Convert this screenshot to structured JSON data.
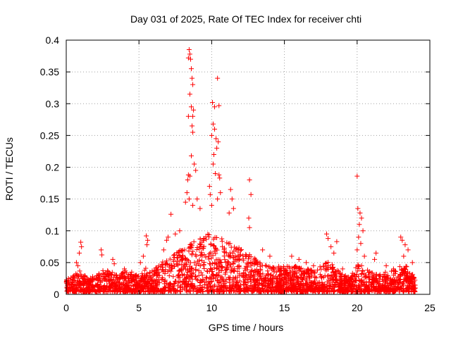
{
  "chart_data": {
    "type": "scatter",
    "title": "Day 031 of 2025, Rate Of TEC Index for receiver chti",
    "xlabel": "GPS time / hours",
    "ylabel": "ROTI / TECUs",
    "xlim": [
      0,
      25
    ],
    "ylim": [
      0,
      0.4
    ],
    "x_ticks": [
      0,
      5,
      10,
      15,
      20,
      25
    ],
    "x_tick_labels": [
      "0",
      "5",
      "10",
      "15",
      "20",
      "25"
    ],
    "y_ticks": [
      0,
      0.05,
      0.1,
      0.15,
      0.2,
      0.25,
      0.3,
      0.35,
      0.4
    ],
    "y_tick_labels": [
      "0",
      "0.05",
      "0.1",
      "0.15",
      "0.2",
      "0.25",
      "0.3",
      "0.35",
      "0.4"
    ],
    "grid": true,
    "legend": "none",
    "marker": "plus",
    "color": "#ff0000",
    "points": [
      [
        8.45,
        0.385
      ],
      [
        8.5,
        0.378
      ],
      [
        8.4,
        0.372
      ],
      [
        8.55,
        0.37
      ],
      [
        8.6,
        0.355
      ],
      [
        8.65,
        0.34
      ],
      [
        8.7,
        0.33
      ],
      [
        8.5,
        0.315
      ],
      [
        8.6,
        0.295
      ],
      [
        8.7,
        0.28
      ],
      [
        8.75,
        0.29
      ],
      [
        8.4,
        0.28
      ],
      [
        8.65,
        0.265
      ],
      [
        8.7,
        0.255
      ],
      [
        8.6,
        0.218
      ],
      [
        8.8,
        0.205
      ],
      [
        8.9,
        0.195
      ],
      [
        8.4,
        0.188
      ],
      [
        8.5,
        0.186
      ],
      [
        8.35,
        0.18
      ],
      [
        8.3,
        0.16
      ],
      [
        8.2,
        0.145
      ],
      [
        8.45,
        0.15
      ],
      [
        8.7,
        0.14
      ],
      [
        9.0,
        0.15
      ],
      [
        9.2,
        0.135
      ],
      [
        10.05,
        0.302
      ],
      [
        10.2,
        0.295
      ],
      [
        10.5,
        0.297
      ],
      [
        10.4,
        0.34
      ],
      [
        10.1,
        0.268
      ],
      [
        10.2,
        0.26
      ],
      [
        10.0,
        0.25
      ],
      [
        10.3,
        0.245
      ],
      [
        10.45,
        0.24
      ],
      [
        10.35,
        0.23
      ],
      [
        10.15,
        0.22
      ],
      [
        10.1,
        0.205
      ],
      [
        10.25,
        0.19
      ],
      [
        10.5,
        0.188
      ],
      [
        10.55,
        0.183
      ],
      [
        10.6,
        0.16
      ],
      [
        9.85,
        0.17
      ],
      [
        9.9,
        0.157
      ],
      [
        10.0,
        0.14
      ],
      [
        10.4,
        0.15
      ],
      [
        11.3,
        0.165
      ],
      [
        11.4,
        0.15
      ],
      [
        11.5,
        0.135
      ],
      [
        11.2,
        0.128
      ],
      [
        12.6,
        0.18
      ],
      [
        12.7,
        0.157
      ],
      [
        12.55,
        0.12
      ],
      [
        12.6,
        0.105
      ],
      [
        7.2,
        0.126
      ],
      [
        7.0,
        0.09
      ],
      [
        6.9,
        0.085
      ],
      [
        6.7,
        0.07
      ],
      [
        7.5,
        0.095
      ],
      [
        7.8,
        0.1
      ],
      [
        5.5,
        0.092
      ],
      [
        5.6,
        0.085
      ],
      [
        5.55,
        0.078
      ],
      [
        5.3,
        0.06
      ],
      [
        5.1,
        0.05
      ],
      [
        1.0,
        0.082
      ],
      [
        1.05,
        0.075
      ],
      [
        0.9,
        0.065
      ],
      [
        0.7,
        0.05
      ],
      [
        0.8,
        0.045
      ],
      [
        0.15,
        0.025
      ],
      [
        0.05,
        0.01
      ],
      [
        2.4,
        0.07
      ],
      [
        2.45,
        0.062
      ],
      [
        3.2,
        0.055
      ],
      [
        3.3,
        0.048
      ],
      [
        4.0,
        0.04
      ],
      [
        4.5,
        0.035
      ],
      [
        13.5,
        0.07
      ],
      [
        14.0,
        0.06
      ],
      [
        15.5,
        0.06
      ],
      [
        16.0,
        0.055
      ],
      [
        16.5,
        0.05
      ],
      [
        17.0,
        0.045
      ],
      [
        17.9,
        0.095
      ],
      [
        18.0,
        0.088
      ],
      [
        18.2,
        0.075
      ],
      [
        18.6,
        0.083
      ],
      [
        18.4,
        0.065
      ],
      [
        19.0,
        0.04
      ],
      [
        20.0,
        0.186
      ],
      [
        20.05,
        0.135
      ],
      [
        20.2,
        0.128
      ],
      [
        20.3,
        0.12
      ],
      [
        20.15,
        0.11
      ],
      [
        20.4,
        0.1
      ],
      [
        20.1,
        0.09
      ],
      [
        20.25,
        0.08
      ],
      [
        20.0,
        0.07
      ],
      [
        20.5,
        0.06
      ],
      [
        21.3,
        0.065
      ],
      [
        21.2,
        0.055
      ],
      [
        22.0,
        0.045
      ],
      [
        22.5,
        0.04
      ],
      [
        23.0,
        0.09
      ],
      [
        23.1,
        0.085
      ],
      [
        23.3,
        0.078
      ],
      [
        23.5,
        0.07
      ],
      [
        23.2,
        0.06
      ],
      [
        23.8,
        0.05
      ],
      [
        23.9,
        0.02
      ],
      [
        24.0,
        0.01
      ]
    ],
    "density_profile": [
      [
        0.0,
        0.015
      ],
      [
        0.5,
        0.02
      ],
      [
        1.0,
        0.025
      ],
      [
        1.5,
        0.015
      ],
      [
        2.0,
        0.02
      ],
      [
        2.5,
        0.025
      ],
      [
        3.0,
        0.025
      ],
      [
        3.5,
        0.02
      ],
      [
        4.0,
        0.025
      ],
      [
        4.5,
        0.02
      ],
      [
        5.0,
        0.02
      ],
      [
        5.5,
        0.03
      ],
      [
        6.0,
        0.025
      ],
      [
        6.5,
        0.035
      ],
      [
        7.0,
        0.04
      ],
      [
        7.5,
        0.045
      ],
      [
        8.0,
        0.05
      ],
      [
        8.5,
        0.06
      ],
      [
        9.0,
        0.06
      ],
      [
        9.5,
        0.065
      ],
      [
        10.0,
        0.07
      ],
      [
        10.5,
        0.065
      ],
      [
        11.0,
        0.06
      ],
      [
        11.5,
        0.055
      ],
      [
        12.0,
        0.05
      ],
      [
        12.5,
        0.045
      ],
      [
        13.0,
        0.04
      ],
      [
        13.5,
        0.035
      ],
      [
        14.0,
        0.03
      ],
      [
        14.5,
        0.03
      ],
      [
        15.0,
        0.03
      ],
      [
        15.5,
        0.03
      ],
      [
        16.0,
        0.03
      ],
      [
        16.5,
        0.028
      ],
      [
        17.0,
        0.028
      ],
      [
        17.5,
        0.03
      ],
      [
        18.0,
        0.035
      ],
      [
        18.5,
        0.03
      ],
      [
        19.0,
        0.02
      ],
      [
        19.5,
        0.018
      ],
      [
        20.0,
        0.035
      ],
      [
        20.5,
        0.03
      ],
      [
        21.0,
        0.022
      ],
      [
        21.5,
        0.022
      ],
      [
        22.0,
        0.025
      ],
      [
        22.5,
        0.025
      ],
      [
        23.0,
        0.03
      ],
      [
        23.5,
        0.03
      ],
      [
        24.0,
        0.015
      ]
    ],
    "density_points_per_hour": 110
  }
}
